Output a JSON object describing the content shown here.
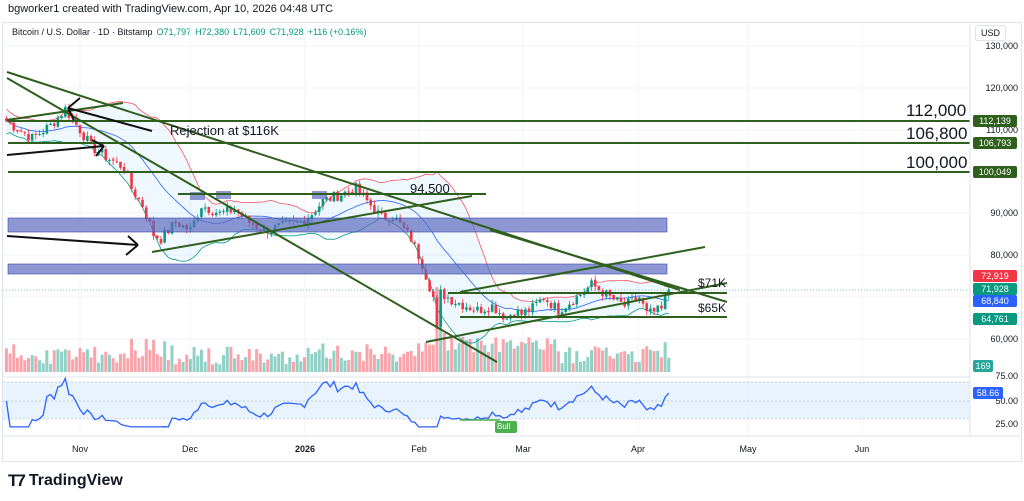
{
  "header": {
    "credit": "bgworker1 created with TradingView.com, Apr 10, 2026 04:48 UTC"
  },
  "legend": {
    "symbol": "Bitcoin / U.S. Dollar · 1D · Bitstamp",
    "open": "O71,797",
    "high": "H72,380",
    "low": "L71,609",
    "close": "C71,928",
    "change": "+116 (+0.16%)"
  },
  "axis": {
    "currency": "USD",
    "price_ticks": [
      "130,000",
      "120,000",
      "110,000",
      "90,000",
      "80,000",
      "60,000"
    ],
    "rsi_ticks": [
      "75.00",
      "50.00",
      "25.00"
    ],
    "dates": [
      "Nov",
      "Dec",
      "2026",
      "Feb",
      "Mar",
      "Apr",
      "May",
      "Jun"
    ]
  },
  "tags": {
    "l112": "112,139",
    "l106": "106,793",
    "l100": "100,049",
    "upper_bb": "72,919",
    "last": "71,928",
    "basis": "68,840",
    "lower_bb": "64,761",
    "volume": "169",
    "rsi": "58.66"
  },
  "annotations": {
    "lvl112": "112,000",
    "lvl106": "106,800",
    "lvl100": "100,000",
    "lvl945": "94,500",
    "rejection": "Rejection at $116K",
    "k71": "$71K",
    "k65": "$65K",
    "bull": "Bull"
  },
  "colors": {
    "up": "#089981",
    "down": "#f23645",
    "line": "#2f5f1c",
    "zone": "#5c6bc0",
    "rsi": "#2962ff"
  },
  "brand": "TradingView",
  "chart_data": {
    "type": "candlestick",
    "title": "Bitcoin / U.S. Dollar · 1D · Bitstamp",
    "ylabel": "USD",
    "ylim": [
      55000,
      133000
    ],
    "close_keypoints": [
      [
        -20,
        112000
      ],
      [
        -13,
        108000
      ],
      [
        -8,
        111000
      ],
      [
        -4,
        115000
      ],
      [
        0,
        110000
      ],
      [
        3,
        106000
      ],
      [
        8,
        103000
      ],
      [
        12,
        101000
      ],
      [
        14,
        96000
      ],
      [
        17,
        92000
      ],
      [
        20,
        85000
      ],
      [
        22,
        84000
      ],
      [
        26,
        88000
      ],
      [
        30,
        86000
      ],
      [
        33,
        92000
      ],
      [
        38,
        90000
      ],
      [
        42,
        91000
      ],
      [
        46,
        88000
      ],
      [
        50,
        86000
      ],
      [
        55,
        87000
      ],
      [
        60,
        88000
      ],
      [
        63,
        90000
      ],
      [
        66,
        93000
      ],
      [
        72,
        95000
      ],
      [
        75,
        96000
      ],
      [
        78,
        93000
      ],
      [
        82,
        89000
      ],
      [
        85,
        89500
      ],
      [
        90,
        84000
      ],
      [
        93,
        78000
      ],
      [
        96,
        70000
      ],
      [
        97,
        62000
      ],
      [
        98,
        71000
      ],
      [
        102,
        69000
      ],
      [
        108,
        67000
      ],
      [
        112,
        68000
      ],
      [
        116,
        65000
      ],
      [
        118,
        67000
      ],
      [
        120,
        66000
      ],
      [
        123,
        67500
      ],
      [
        126,
        70000
      ],
      [
        130,
        67000
      ],
      [
        135,
        70000
      ],
      [
        139,
        73000
      ],
      [
        141,
        72000
      ],
      [
        144,
        70000
      ],
      [
        148,
        68000
      ],
      [
        152,
        70000
      ],
      [
        154,
        66000
      ],
      [
        158,
        67000
      ],
      [
        160,
        71928
      ]
    ],
    "x_unit": "days from Nov 1, 2025",
    "indicators": [
      "Bollinger Bands (20,2)",
      "Volume",
      "RSI 14"
    ]
  }
}
